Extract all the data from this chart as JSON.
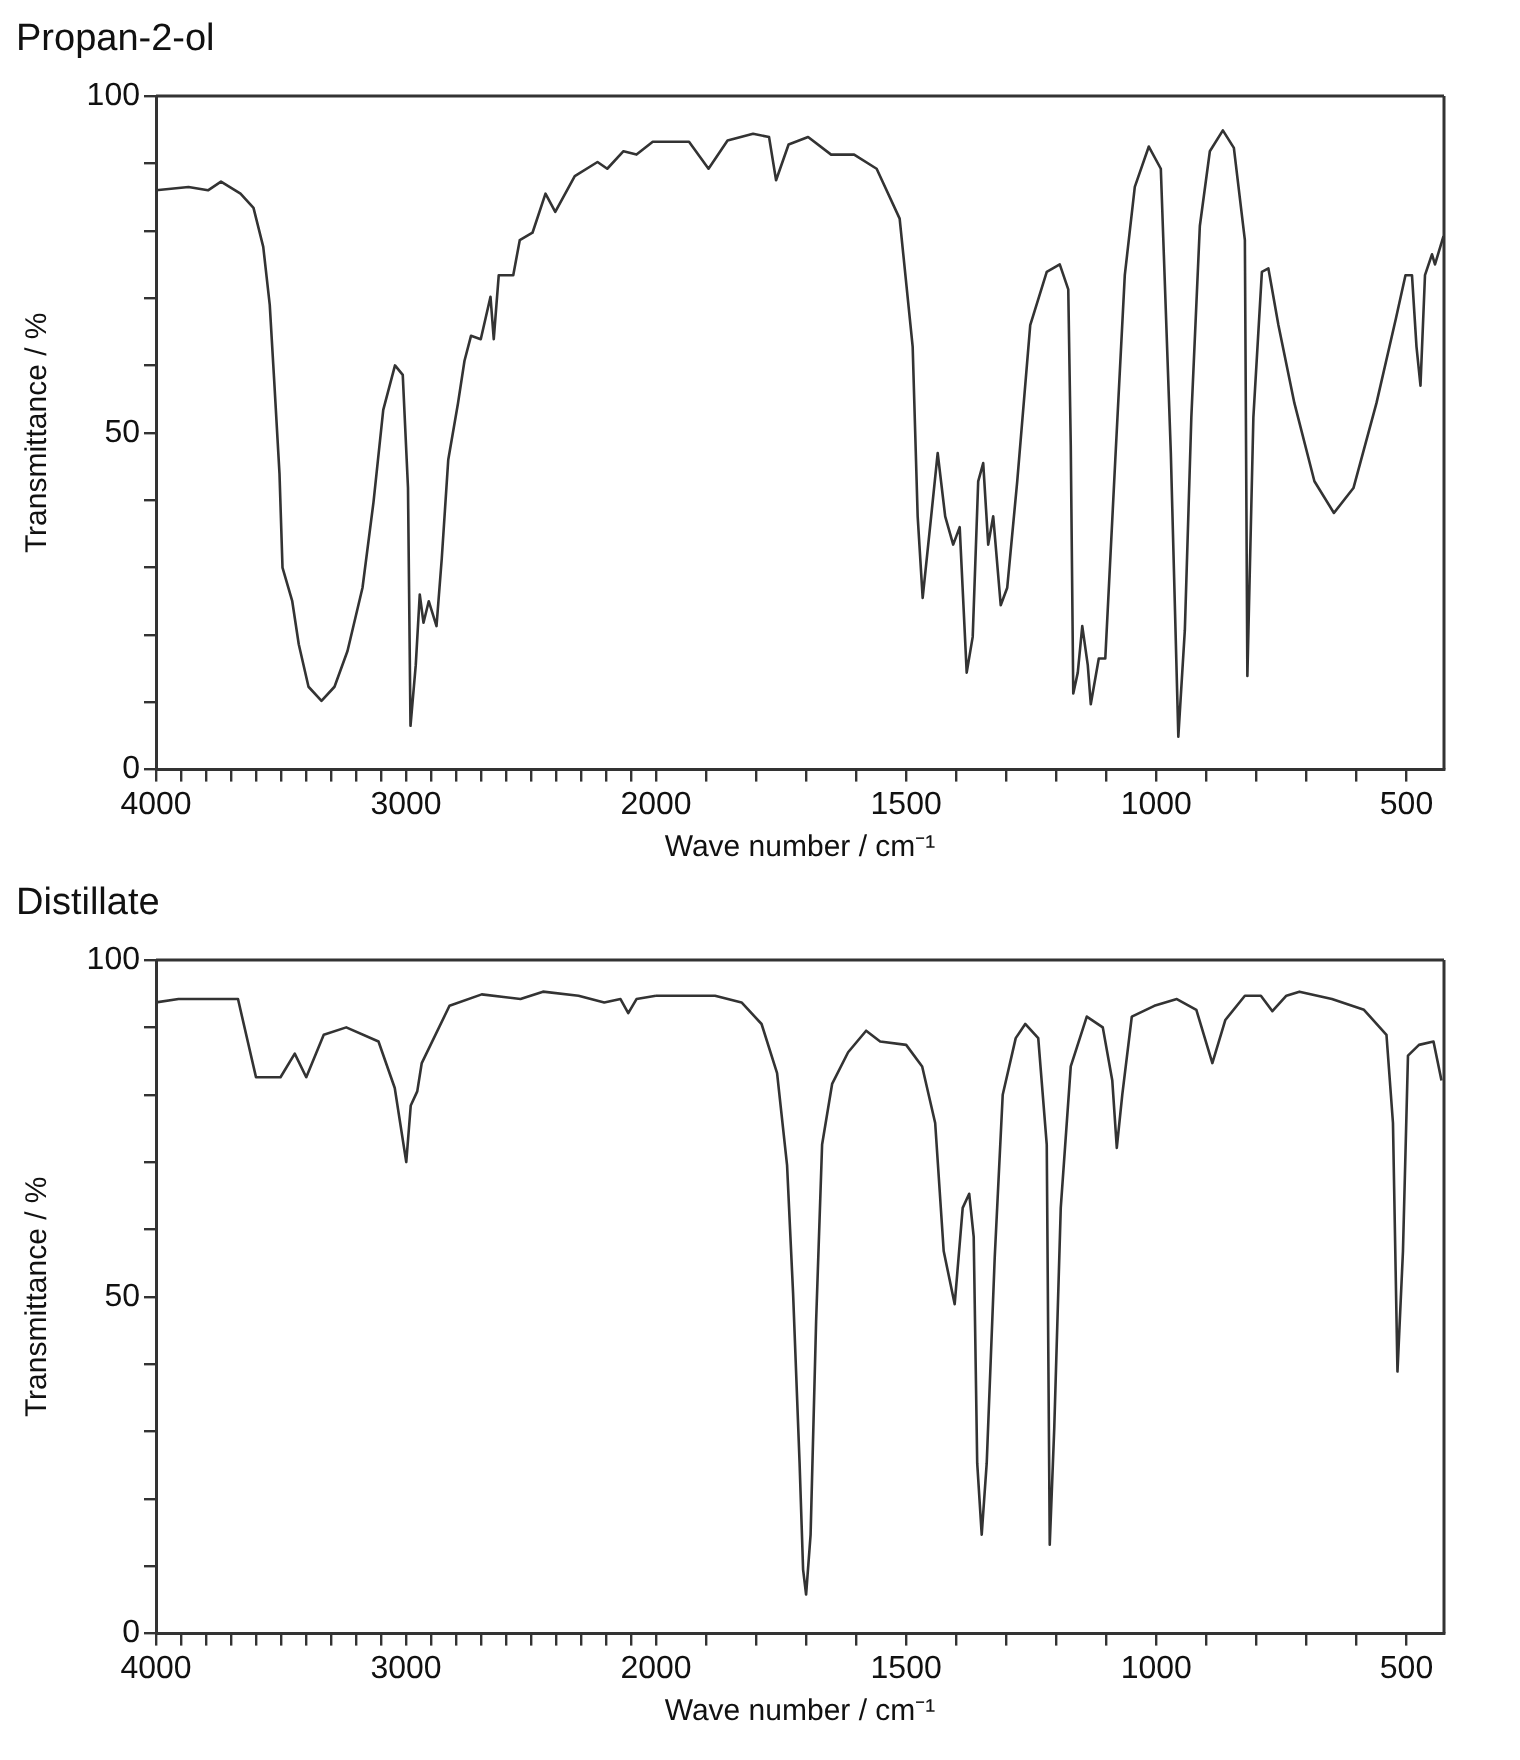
{
  "chart_data": [
    {
      "type": "line",
      "title": "Propan-2-ol",
      "ylabel": "Transmittance / %",
      "marker": "none",
      "xlim": [
        4000,
        2000
      ],
      "ylim": [
        0,
        100
      ],
      "xticks": [
        4000,
        {
          "value": 3900,
          "label": null
        },
        {
          "value": 3800,
          "label": null
        },
        {
          "value": 3700,
          "label": null
        },
        {
          "value": 3600,
          "label": null
        },
        {
          "value": 3500,
          "label": null
        },
        {
          "value": 3400,
          "label": null
        },
        {
          "value": 3300,
          "label": null
        },
        {
          "value": 3200,
          "label": null
        },
        {
          "value": 3100,
          "label": null
        },
        3000,
        {
          "value": 2900,
          "label": null
        },
        {
          "value": 2800,
          "label": null
        },
        {
          "value": 2700,
          "label": null
        },
        {
          "value": 2600,
          "label": null
        },
        {
          "value": 2500,
          "label": null
        },
        {
          "value": 2400,
          "label": null
        },
        {
          "value": 2300,
          "label": null
        },
        {
          "value": 2200,
          "label": null
        },
        {
          "value": 2100,
          "label": null
        },
        2000
      ],
      "yticks": [
        0,
        {
          "value": 10,
          "label": null
        },
        {
          "value": 20,
          "label": null
        },
        {
          "value": 30,
          "label": null
        },
        {
          "value": 40,
          "label": null
        },
        50,
        {
          "value": 60,
          "label": null
        },
        {
          "value": 70,
          "label": null
        },
        {
          "value": 80,
          "label": null
        },
        {
          "value": 90,
          "label": null
        },
        100
      ],
      "series": [
        {
          "color": "#333333",
          "x": [
            4000,
            3870,
            3792,
            3740,
            3662,
            3610,
            3571,
            3545,
            3527,
            3506,
            3494,
            3455,
            3429,
            3390,
            3338,
            3286,
            3234,
            3174,
            3130,
            3091,
            3044,
            3013,
            2992,
            2982,
            2961,
            2945,
            2930,
            2909,
            2878,
            2857,
            2831,
            2792,
            2766,
            2740,
            2701,
            2662,
            2649,
            2629,
            2571,
            2545,
            2494,
            2442,
            2403,
            2325,
            2234,
            2195,
            2130,
            2078,
            2013,
            2000
          ],
          "values": [
            86,
            86.5,
            86,
            87.3,
            85.5,
            83.4,
            77.6,
            69,
            57.6,
            43.9,
            30,
            25,
            18.6,
            12.3,
            10.2,
            12.3,
            17.6,
            27,
            39.7,
            53.4,
            60,
            58.6,
            41.8,
            6.5,
            15.5,
            26,
            21.8,
            25,
            21.3,
            31.3,
            46,
            54.4,
            60.7,
            64.4,
            63.9,
            70.2,
            63.9,
            73.4,
            73.4,
            78.6,
            79.7,
            85.5,
            82.8,
            88.1,
            90.2,
            89.2,
            91.8,
            91.3,
            93.2,
            93.2
          ]
        }
      ]
    },
    {
      "type": "line",
      "xlabel": "Wave number / cm⁻¹",
      "marker": "none",
      "tick_labels": "x",
      "xlim": [
        2000,
        425
      ],
      "ylim": [
        0,
        100
      ],
      "xticks": [
        {
          "value": 1900,
          "label": null
        },
        {
          "value": 1800,
          "label": null
        },
        {
          "value": 1700,
          "label": null
        },
        {
          "value": 1600,
          "label": null
        },
        1500,
        {
          "value": 1400,
          "label": null
        },
        {
          "value": 1300,
          "label": null
        },
        {
          "value": 1200,
          "label": null
        },
        {
          "value": 1100,
          "label": null
        },
        1000,
        {
          "value": 900,
          "label": null
        },
        {
          "value": 800,
          "label": null
        },
        {
          "value": 700,
          "label": null
        },
        {
          "value": 600,
          "label": null
        },
        500
      ],
      "series": [
        {
          "color": "#333333",
          "x": [
            2000,
            1934,
            1895,
            1857,
            1806,
            1774,
            1760,
            1735,
            1696,
            1650,
            1604,
            1559,
            1513,
            1487,
            1477,
            1467,
            1450,
            1437,
            1422,
            1406,
            1393,
            1379,
            1367,
            1356,
            1346,
            1336,
            1326,
            1311,
            1298,
            1278,
            1252,
            1219,
            1193,
            1176,
            1171,
            1166,
            1157,
            1148,
            1137,
            1131,
            1115,
            1102,
            1082,
            1063,
            1043,
            1015,
            991,
            971,
            956,
            943,
            930,
            913,
            893,
            867,
            845,
            823,
            818,
            806,
            789,
            776,
            756,
            724,
            684,
            645,
            606,
            560,
            521,
            502,
            489,
            480,
            472,
            463,
            449,
            443,
            426
          ],
          "values": [
            93.2,
            93.2,
            89.2,
            93.4,
            94.4,
            93.9,
            87.5,
            92.8,
            93.9,
            91.3,
            91.3,
            89.2,
            81.8,
            62.8,
            37.6,
            25.5,
            37.6,
            47,
            37.6,
            33.4,
            36,
            14.4,
            19.7,
            42.8,
            45.5,
            33.4,
            37.6,
            24.4,
            27,
            42.8,
            66,
            73.9,
            75,
            71.3,
            48.1,
            11.3,
            14.4,
            21.3,
            15.5,
            9.7,
            16.5,
            16.5,
            46,
            73.4,
            86.5,
            92.5,
            89.2,
            47,
            4.9,
            20.7,
            52.3,
            80.7,
            91.8,
            94.9,
            92.3,
            78.6,
            13.9,
            52.3,
            73.9,
            74.4,
            66,
            54.4,
            42.8,
            38.1,
            41.8,
            54.4,
            67,
            73.4,
            73.4,
            62.8,
            57,
            73.4,
            76.5,
            75,
            79.2
          ]
        }
      ]
    },
    {
      "type": "line",
      "title": "Distillate",
      "ylabel": "Transmittance / %",
      "marker": "none",
      "xlim": [
        4000,
        2000
      ],
      "ylim": [
        0,
        100
      ],
      "xticks": [
        4000,
        {
          "value": 3900,
          "label": null
        },
        {
          "value": 3800,
          "label": null
        },
        {
          "value": 3700,
          "label": null
        },
        {
          "value": 3600,
          "label": null
        },
        {
          "value": 3500,
          "label": null
        },
        {
          "value": 3400,
          "label": null
        },
        {
          "value": 3300,
          "label": null
        },
        {
          "value": 3200,
          "label": null
        },
        {
          "value": 3100,
          "label": null
        },
        3000,
        {
          "value": 2900,
          "label": null
        },
        {
          "value": 2800,
          "label": null
        },
        {
          "value": 2700,
          "label": null
        },
        {
          "value": 2600,
          "label": null
        },
        {
          "value": 2500,
          "label": null
        },
        {
          "value": 2400,
          "label": null
        },
        {
          "value": 2300,
          "label": null
        },
        {
          "value": 2200,
          "label": null
        },
        {
          "value": 2100,
          "label": null
        },
        2000
      ],
      "yticks": [
        0,
        {
          "value": 10,
          "label": null
        },
        {
          "value": 20,
          "label": null
        },
        {
          "value": 30,
          "label": null
        },
        {
          "value": 40,
          "label": null
        },
        50,
        {
          "value": 60,
          "label": null
        },
        {
          "value": 70,
          "label": null
        },
        {
          "value": 80,
          "label": null
        },
        {
          "value": 90,
          "label": null
        },
        100
      ],
      "series": [
        {
          "color": "#333333",
          "x": [
            4000,
            3910,
            3755,
            3672,
            3600,
            3502,
            3445,
            3399,
            3329,
            3239,
            3110,
            3045,
            2999,
            2981,
            2955,
            2937,
            2826,
            2697,
            2542,
            2452,
            2310,
            2207,
            2142,
            2111,
            2078,
            2000
          ],
          "values": [
            93.7,
            94.2,
            94.2,
            94.2,
            82.6,
            82.6,
            86.1,
            82.6,
            88.9,
            90,
            87.9,
            81,
            70,
            78.4,
            80.5,
            84.7,
            93.2,
            94.9,
            94.2,
            95.3,
            94.7,
            93.7,
            94.2,
            92.1,
            94.2,
            94.7
          ]
        }
      ]
    },
    {
      "type": "line",
      "xlabel": "Wave number / cm⁻¹",
      "marker": "none",
      "tick_labels": "x",
      "xlim": [
        2000,
        425
      ],
      "ylim": [
        0,
        100
      ],
      "xticks": [
        {
          "value": 1900,
          "label": null
        },
        {
          "value": 1800,
          "label": null
        },
        {
          "value": 1700,
          "label": null
        },
        {
          "value": 1600,
          "label": null
        },
        1500,
        {
          "value": 1400,
          "label": null
        },
        {
          "value": 1300,
          "label": null
        },
        {
          "value": 1200,
          "label": null
        },
        {
          "value": 1100,
          "label": null
        },
        1000,
        {
          "value": 900,
          "label": null
        },
        {
          "value": 800,
          "label": null
        },
        {
          "value": 700,
          "label": null
        },
        {
          "value": 600,
          "label": null
        },
        500
      ],
      "series": [
        {
          "color": "#333333",
          "x": [
            2000,
            1947,
            1882,
            1829,
            1789,
            1758,
            1738,
            1726,
            1713,
            1706,
            1700,
            1691,
            1680,
            1668,
            1648,
            1616,
            1580,
            1552,
            1500,
            1468,
            1442,
            1425,
            1403,
            1387,
            1374,
            1365,
            1358,
            1349,
            1339,
            1323,
            1307,
            1281,
            1262,
            1236,
            1219,
            1213,
            1204,
            1191,
            1171,
            1139,
            1107,
            1088,
            1079,
            1068,
            1049,
            1004,
            959,
            920,
            888,
            862,
            823,
            791,
            768,
            740,
            714,
            649,
            585,
            540,
            527,
            518,
            507,
            497,
            475,
            446,
            430
          ],
          "values": [
            94.7,
            94.7,
            94.7,
            93.7,
            90.5,
            83.2,
            69.5,
            50.5,
            25.3,
            9.5,
            5.8,
            14.7,
            46.3,
            72.6,
            81.6,
            86.3,
            89.5,
            87.9,
            87.4,
            84.2,
            75.8,
            56.8,
            48.9,
            63.2,
            65.3,
            58.9,
            25.3,
            14.7,
            25.3,
            55.8,
            80,
            88.4,
            90.5,
            88.4,
            72.6,
            13.2,
            30.5,
            63.2,
            84.2,
            91.6,
            90,
            82.1,
            72.1,
            80,
            91.6,
            93.2,
            94.2,
            92.6,
            84.7,
            91.1,
            94.7,
            94.7,
            92.4,
            94.7,
            95.3,
            94.2,
            92.6,
            88.9,
            75.8,
            38.9,
            56.8,
            85.8,
            87.4,
            87.9,
            82.1
          ]
        }
      ]
    }
  ]
}
